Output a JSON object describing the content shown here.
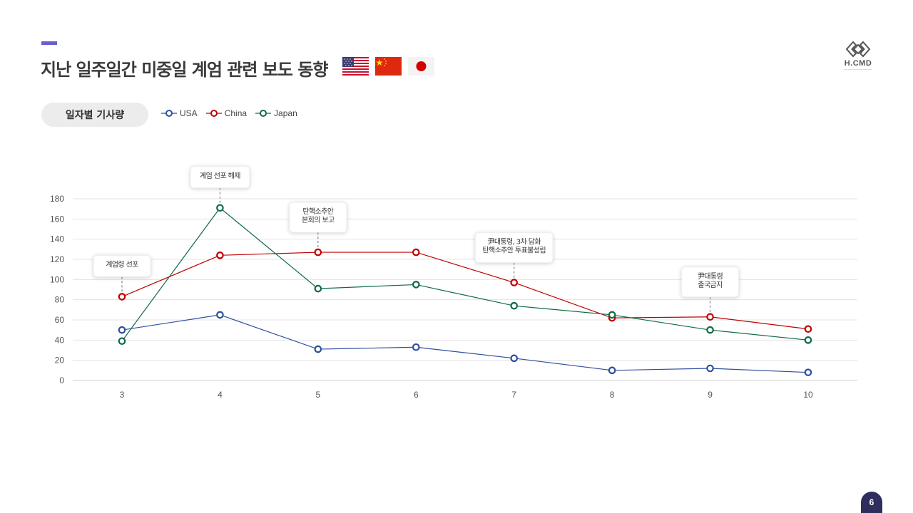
{
  "page": {
    "title": "지난 일주일간 미중일 계엄 관련 보도 동향",
    "section_label": "일자별 기사량",
    "page_number": "6",
    "logo_text": "H.CMD"
  },
  "flags": [
    {
      "name": "us-flag-icon"
    },
    {
      "name": "china-flag-icon"
    },
    {
      "name": "japan-flag-icon"
    }
  ],
  "colors": {
    "USA": "#2f4fa0",
    "China": "#c00000",
    "Japan": "#0f6b45",
    "accent": "#6a5fd0",
    "grid": "#e3e3e3"
  },
  "chart_data": {
    "type": "line",
    "x": [
      3,
      4,
      5,
      6,
      7,
      8,
      9,
      10
    ],
    "ylim": [
      0,
      180
    ],
    "yticks": [
      0,
      20,
      40,
      60,
      80,
      100,
      120,
      140,
      160,
      180
    ],
    "grid": true,
    "legend": "top-left",
    "series": [
      {
        "name": "USA",
        "values": [
          50,
          65,
          31,
          33,
          22,
          10,
          12,
          8
        ]
      },
      {
        "name": "China",
        "values": [
          83,
          124,
          127,
          127,
          97,
          62,
          63,
          51
        ]
      },
      {
        "name": "Japan",
        "values": [
          39,
          171,
          91,
          95,
          74,
          65,
          50,
          40
        ]
      }
    ],
    "annotations": [
      {
        "x": 3,
        "text": [
          "계엄령 선포"
        ]
      },
      {
        "x": 4,
        "text": [
          "계엄 선포 해제"
        ]
      },
      {
        "x": 5,
        "text": [
          "탄핵소추안",
          "본회의 보고"
        ]
      },
      {
        "x": 7,
        "text": [
          "尹대통령, 3차 담화",
          "탄핵소추안 투표불성립"
        ]
      },
      {
        "x": 9,
        "text": [
          "尹대통령",
          "출국금지"
        ]
      }
    ]
  }
}
